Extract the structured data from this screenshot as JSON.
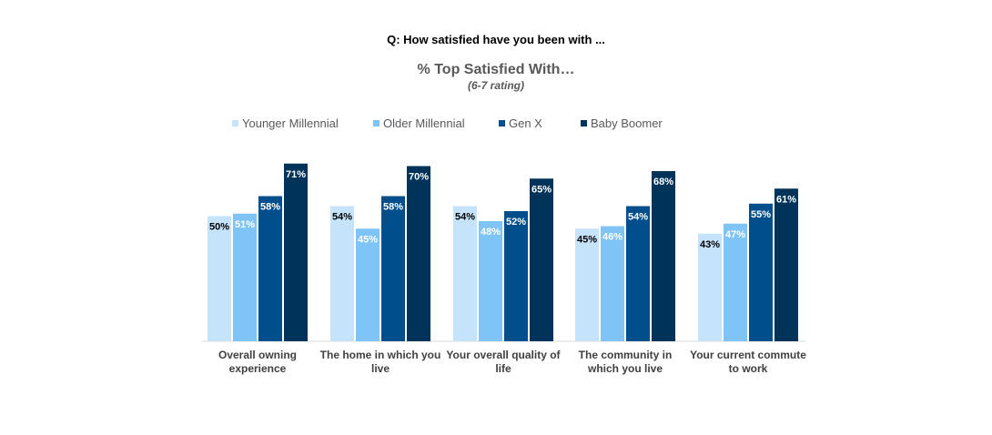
{
  "question": "Q: How satisfied have you been with ...",
  "chart_data": {
    "type": "bar",
    "title": "% Top Satisfied With…",
    "subtitle": "(6-7 rating)",
    "xlabel": "",
    "ylabel": "",
    "ylim": [
      0,
      75
    ],
    "grid": false,
    "legend_position": "top",
    "categories": [
      [
        "Overall owning",
        "experience"
      ],
      [
        "The home in which you",
        "live"
      ],
      [
        "Your overall quality of",
        "life"
      ],
      [
        "The community in",
        "which you live"
      ],
      [
        "Your current commute",
        "to work"
      ]
    ],
    "series": [
      {
        "name": "Younger Millennial",
        "color": "#c5e3fb",
        "label_color": "#000000",
        "values": [
          50,
          54,
          54,
          45,
          43
        ]
      },
      {
        "name": "Older Millennial",
        "color": "#7fc4f6",
        "label_color": "#ffffff",
        "values": [
          51,
          45,
          48,
          46,
          47
        ]
      },
      {
        "name": "Gen X",
        "color": "#004f8c",
        "label_color": "#ffffff",
        "values": [
          58,
          58,
          52,
          54,
          55
        ]
      },
      {
        "name": "Baby Boomer",
        "color": "#00335a",
        "label_color": "#ffffff",
        "values": [
          71,
          70,
          65,
          68,
          61
        ]
      }
    ],
    "value_suffix": "%"
  }
}
